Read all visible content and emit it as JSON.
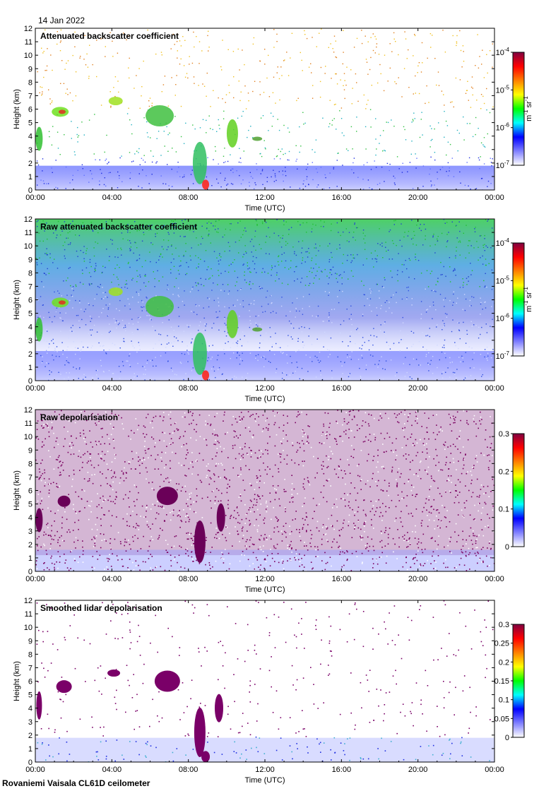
{
  "figure": {
    "date": "14 Jan 2022",
    "footer": "Rovaniemi Vaisala CL61D ceilometer"
  },
  "chart_data": [
    {
      "type": "heatmap",
      "title": "Attenuated backscatter coefficient",
      "xlabel": "Time (UTC)",
      "ylabel": "Height (km)",
      "x_ticks": [
        "00:00",
        "04:00",
        "08:00",
        "12:00",
        "16:00",
        "20:00",
        "00:00"
      ],
      "xlim_hours": [
        0,
        24
      ],
      "ylim": [
        0,
        12
      ],
      "y_ticks": [
        0,
        1,
        2,
        3,
        4,
        5,
        6,
        7,
        8,
        9,
        10,
        11,
        12
      ],
      "colorbar": {
        "scale": "log",
        "min": 1e-07,
        "max": 0.0001,
        "ticks": [
          "10-7",
          "10-6",
          "10-5",
          "10-4"
        ],
        "unit": "m-1 sr-1",
        "colors": [
          "#ffffff",
          "#8080ff",
          "#0000ff",
          "#00ffff",
          "#00ff00",
          "#ffff00",
          "#ff8000",
          "#ff0000",
          "#800040"
        ]
      }
    },
    {
      "type": "heatmap",
      "title": "Raw attenuated backscatter coefficient",
      "xlabel": "Time (UTC)",
      "ylabel": "Height (km)",
      "x_ticks": [
        "00:00",
        "04:00",
        "08:00",
        "12:00",
        "16:00",
        "20:00",
        "00:00"
      ],
      "xlim_hours": [
        0,
        24
      ],
      "ylim": [
        0,
        12
      ],
      "y_ticks": [
        0,
        1,
        2,
        3,
        4,
        5,
        6,
        7,
        8,
        9,
        10,
        11,
        12
      ],
      "colorbar": {
        "scale": "log",
        "min": 1e-07,
        "max": 0.0001,
        "ticks": [
          "10-7",
          "10-6",
          "10-5",
          "10-4"
        ],
        "unit": "m-1 sr-1",
        "colors": [
          "#ffffff",
          "#8080ff",
          "#0000ff",
          "#00ffff",
          "#00ff00",
          "#ffff00",
          "#ff8000",
          "#ff0000",
          "#800040"
        ]
      }
    },
    {
      "type": "heatmap",
      "title": "Raw depolarisation",
      "xlabel": "Time (UTC)",
      "ylabel": "Height (km)",
      "x_ticks": [
        "00:00",
        "04:00",
        "08:00",
        "12:00",
        "16:00",
        "20:00",
        "00:00"
      ],
      "xlim_hours": [
        0,
        24
      ],
      "ylim": [
        0,
        12
      ],
      "y_ticks": [
        0,
        1,
        2,
        3,
        4,
        5,
        6,
        7,
        8,
        9,
        10,
        11,
        12
      ],
      "colorbar": {
        "scale": "linear",
        "min": 0,
        "max": 0.3,
        "ticks": [
          "0",
          "0.1",
          "0.2",
          "0.3"
        ],
        "unit": "",
        "colors": [
          "#ffffff",
          "#8080ff",
          "#0000ff",
          "#00ffff",
          "#00ff00",
          "#ffff00",
          "#ff8000",
          "#ff0000",
          "#800040"
        ]
      }
    },
    {
      "type": "heatmap",
      "title": "Smoothed lidar depolarisation",
      "xlabel": "Time (UTC)",
      "ylabel": "Height (km)",
      "x_ticks": [
        "00:00",
        "04:00",
        "08:00",
        "12:00",
        "16:00",
        "20:00",
        "00:00"
      ],
      "xlim_hours": [
        0,
        24
      ],
      "ylim": [
        0,
        12
      ],
      "y_ticks": [
        0,
        1,
        2,
        3,
        4,
        5,
        6,
        7,
        8,
        9,
        10,
        11,
        12
      ],
      "colorbar": {
        "scale": "linear",
        "min": 0,
        "max": 0.3,
        "ticks": [
          "0",
          "0.05",
          "0.1",
          "0.15",
          "0.2",
          "0.25",
          "0.3"
        ],
        "unit": "",
        "colors": [
          "#ffffff",
          "#8080ff",
          "#0000ff",
          "#00ffff",
          "#00ff00",
          "#ffff00",
          "#ff8000",
          "#ff0000",
          "#800040"
        ]
      }
    }
  ]
}
